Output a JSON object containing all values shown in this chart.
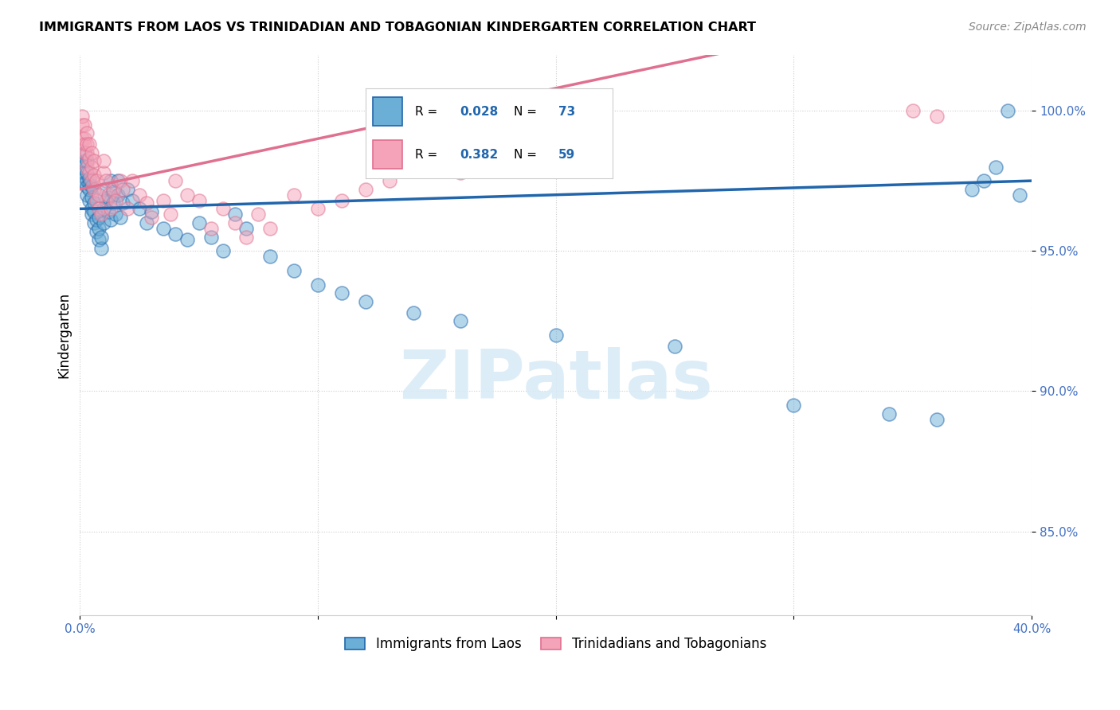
{
  "title": "IMMIGRANTS FROM LAOS VS TRINIDADIAN AND TOBAGONIAN KINDERGARTEN CORRELATION CHART",
  "source": "Source: ZipAtlas.com",
  "ylabel": "Kindergarten",
  "ytick_labels": [
    "85.0%",
    "90.0%",
    "95.0%",
    "100.0%"
  ],
  "ytick_values": [
    0.85,
    0.9,
    0.95,
    1.0
  ],
  "xlim": [
    0.0,
    0.4
  ],
  "ylim": [
    0.82,
    1.02
  ],
  "legend_label_blue": "Immigrants from Laos",
  "legend_label_pink": "Trinidadians and Tobagonians",
  "R_blue": 0.028,
  "N_blue": 73,
  "R_pink": 0.382,
  "N_pink": 59,
  "color_blue": "#6baed6",
  "color_pink": "#f4a3b8",
  "color_blue_line": "#2166ac",
  "color_pink_line": "#e07090",
  "color_blue_text": "#2166ac",
  "watermark": "ZIPatlas",
  "blue_x": [
    0.001,
    0.001,
    0.002,
    0.002,
    0.002,
    0.003,
    0.003,
    0.003,
    0.003,
    0.003,
    0.004,
    0.004,
    0.004,
    0.004,
    0.005,
    0.005,
    0.005,
    0.005,
    0.006,
    0.006,
    0.006,
    0.007,
    0.007,
    0.008,
    0.008,
    0.008,
    0.009,
    0.009,
    0.01,
    0.01,
    0.01,
    0.011,
    0.012,
    0.012,
    0.013,
    0.013,
    0.014,
    0.014,
    0.015,
    0.016,
    0.016,
    0.017,
    0.018,
    0.02,
    0.022,
    0.025,
    0.028,
    0.03,
    0.035,
    0.04,
    0.045,
    0.05,
    0.055,
    0.06,
    0.065,
    0.07,
    0.08,
    0.09,
    0.1,
    0.11,
    0.12,
    0.14,
    0.16,
    0.2,
    0.25,
    0.3,
    0.34,
    0.36,
    0.375,
    0.38,
    0.385,
    0.39,
    0.395
  ],
  "blue_y": [
    0.98,
    0.975,
    0.982,
    0.978,
    0.985,
    0.975,
    0.978,
    0.982,
    0.97,
    0.973,
    0.968,
    0.974,
    0.972,
    0.976,
    0.965,
    0.969,
    0.973,
    0.963,
    0.96,
    0.964,
    0.967,
    0.957,
    0.961,
    0.954,
    0.958,
    0.962,
    0.951,
    0.955,
    0.972,
    0.965,
    0.96,
    0.968,
    0.964,
    0.969,
    0.975,
    0.961,
    0.971,
    0.967,
    0.963,
    0.975,
    0.97,
    0.962,
    0.967,
    0.972,
    0.968,
    0.965,
    0.96,
    0.964,
    0.958,
    0.956,
    0.954,
    0.96,
    0.955,
    0.95,
    0.963,
    0.958,
    0.948,
    0.943,
    0.938,
    0.935,
    0.932,
    0.928,
    0.925,
    0.92,
    0.916,
    0.895,
    0.892,
    0.89,
    0.972,
    0.975,
    0.98,
    1.0,
    0.97
  ],
  "pink_x": [
    0.001,
    0.001,
    0.001,
    0.002,
    0.002,
    0.002,
    0.002,
    0.003,
    0.003,
    0.003,
    0.003,
    0.004,
    0.004,
    0.004,
    0.005,
    0.005,
    0.005,
    0.006,
    0.006,
    0.006,
    0.007,
    0.007,
    0.008,
    0.008,
    0.009,
    0.01,
    0.01,
    0.011,
    0.012,
    0.013,
    0.014,
    0.015,
    0.017,
    0.018,
    0.02,
    0.022,
    0.025,
    0.028,
    0.03,
    0.035,
    0.038,
    0.04,
    0.045,
    0.05,
    0.055,
    0.06,
    0.065,
    0.07,
    0.075,
    0.08,
    0.09,
    0.1,
    0.11,
    0.12,
    0.13,
    0.16,
    0.18,
    0.35,
    0.36
  ],
  "pink_y": [
    0.99,
    0.995,
    0.998,
    0.985,
    0.99,
    0.995,
    0.988,
    0.985,
    0.988,
    0.992,
    0.98,
    0.978,
    0.983,
    0.988,
    0.975,
    0.98,
    0.985,
    0.972,
    0.977,
    0.982,
    0.968,
    0.975,
    0.965,
    0.97,
    0.963,
    0.978,
    0.982,
    0.975,
    0.97,
    0.965,
    0.972,
    0.968,
    0.975,
    0.972,
    0.965,
    0.975,
    0.97,
    0.967,
    0.962,
    0.968,
    0.963,
    0.975,
    0.97,
    0.968,
    0.958,
    0.965,
    0.96,
    0.955,
    0.963,
    0.958,
    0.97,
    0.965,
    0.968,
    0.972,
    0.975,
    0.978,
    0.98,
    1.0,
    0.998
  ]
}
